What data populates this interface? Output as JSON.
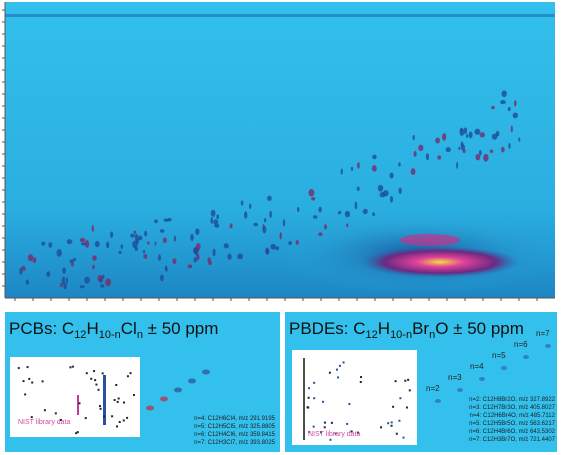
{
  "panels": [
    {
      "title": [
        "PCBs: C",
        "12",
        "H",
        "10-n",
        "Cl",
        "n",
        " ± 50 ppm"
      ],
      "inset_label": "NIST library data",
      "series_labels": [],
      "legend": [
        "n=4: C12H6Cl4, m/z 291.9195",
        "n=5: C12H5Cl5, m/z 325.8805",
        "n=6: C12H4Cl6, m/z 359.8415",
        "n=7: C12H3Cl7, m/z 393.8025"
      ]
    },
    {
      "title": [
        "PBDEs: C",
        "12",
        "H",
        "10-n",
        "Br",
        "n",
        "O ± 50 ppm"
      ],
      "inset_label": "NIST library data",
      "series_labels": [
        "n=2",
        "n=3",
        "n=4",
        "n=5",
        "n=6",
        "n=7"
      ],
      "legend": [
        "n=2: C12H8Br2O, m/z 327.8922",
        "n=3: C12H7Br3O, m/z 405.8027",
        "n=4: C12H6Br4O, m/z 485.7112",
        "n=5: C12H5Br5O, m/z 563.6217",
        "n=6: C12H4Br6O, m/z 643.5302",
        "n=7: C12H3Br7O, m/z 721.4407"
      ]
    }
  ]
}
